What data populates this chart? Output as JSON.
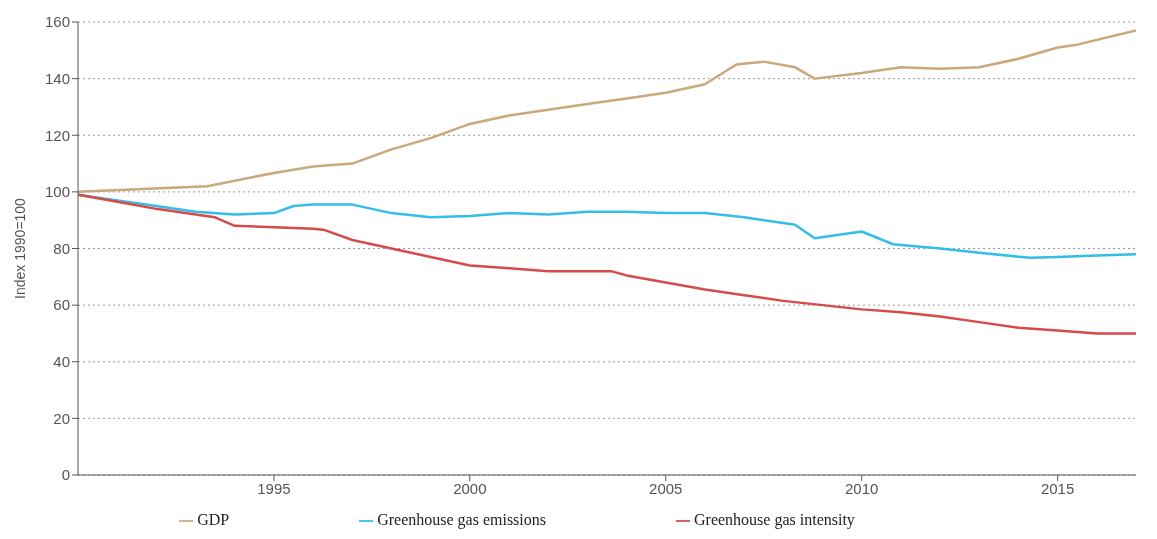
{
  "chart_data": {
    "type": "line",
    "ylabel": "Index 1990=100",
    "xlim": [
      1990,
      2017
    ],
    "xticks": [
      1995,
      2000,
      2005,
      2010,
      2015
    ],
    "ylim": [
      0,
      160
    ],
    "yticks": [
      0,
      20,
      40,
      60,
      80,
      100,
      120,
      140,
      160
    ],
    "grid": "y",
    "legend": "bottom",
    "marker": "none",
    "line_style": "solid",
    "series": [
      {
        "name": "Greenhouse gas emissions",
        "color": "#33bde8",
        "x": [
          1990,
          1991,
          1992,
          1993,
          1994,
          1995,
          1995.5,
          1996,
          1997,
          1998,
          1999,
          2000,
          2001,
          2002,
          2003,
          2004,
          2005,
          2006,
          2007,
          2008,
          2008.3,
          2008.8,
          2010,
          2010.8,
          2012,
          2013,
          2014.3,
          2015,
          2016,
          2017
        ],
        "values": [
          99,
          97,
          95,
          93,
          92,
          92.5,
          95,
          95.5,
          95.5,
          92.5,
          91,
          91.5,
          92.5,
          92,
          93,
          93,
          92.5,
          92.5,
          91,
          89,
          88.4,
          83.6,
          86,
          81.5,
          80,
          78.5,
          76.7,
          77,
          77.5,
          78
        ]
      },
      {
        "name": "GDP",
        "color": "#c9a87a",
        "x": [
          1990,
          1993.3,
          1995,
          1996,
          1997,
          1998,
          1999,
          2000,
          2001,
          2002,
          2003,
          2004,
          2005,
          2006,
          2006.8,
          2007.5,
          2008.3,
          2008.8,
          2010,
          2011,
          2012,
          2013,
          2014,
          2015,
          2015.5,
          2017
        ],
        "values": [
          100,
          102,
          106.7,
          109,
          110,
          115,
          119,
          124,
          127,
          129,
          131,
          133,
          135,
          138,
          145,
          146,
          144,
          140,
          142,
          144,
          143.5,
          144,
          147,
          151,
          152,
          157
        ]
      },
      {
        "name": "Greenhouse gas intensity",
        "color": "#d84a4a",
        "x": [
          1990,
          1991,
          1992,
          1993,
          1993.5,
          1994,
          1995,
          1996,
          1996.3,
          1997,
          1998,
          1999,
          2000,
          2001,
          2002,
          2003,
          2003.6,
          2004,
          2005,
          2006,
          2007,
          2008,
          2009,
          2010,
          2011,
          2012,
          2013,
          2014,
          2015,
          2016,
          2017
        ],
        "values": [
          99,
          96.5,
          94,
          92,
          91,
          88,
          87.5,
          87,
          86.5,
          83,
          80,
          77,
          74,
          73,
          72,
          72,
          72,
          70.5,
          68,
          65.5,
          63.5,
          61.5,
          60,
          58.5,
          57.5,
          56,
          54,
          52,
          51,
          50,
          50
        ]
      }
    ]
  }
}
